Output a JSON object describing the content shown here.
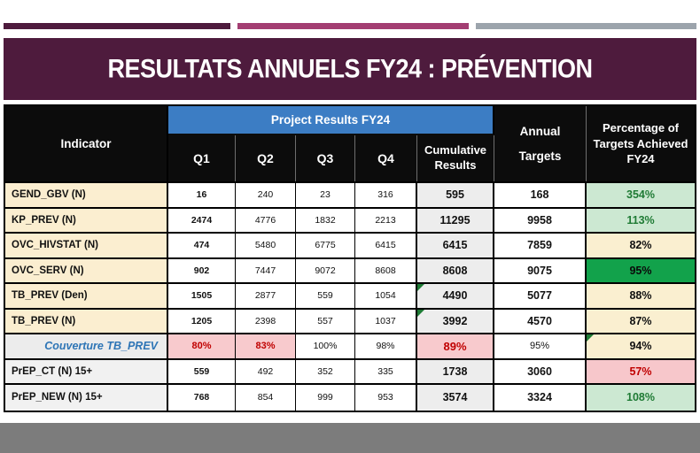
{
  "slide": {
    "title": "RESULTATS ANNUELS FY24 : PRÉVENTION"
  },
  "table": {
    "header": {
      "indicator": "Indicator",
      "group": "Project Results FY24",
      "q1": "Q1",
      "q2": "Q2",
      "q3": "Q3",
      "q4": "Q4",
      "cumulative": "Cumulative Results",
      "annual_line1": "Annual",
      "annual_line2": "Targets",
      "percentage": "Percentage of Targets Achieved FY24"
    },
    "rows": [
      {
        "indicator": "GEND_GBV (N)",
        "q1": "16",
        "q2": "240",
        "q3": "23",
        "q4": "316",
        "cumulative": "595",
        "annual_target": "168",
        "pct_achieved": "354%"
      },
      {
        "indicator": "KP_PREV (N)",
        "q1": "2474",
        "q2": "4776",
        "q3": "1832",
        "q4": "2213",
        "cumulative": "11295",
        "annual_target": "9958",
        "pct_achieved": "113%"
      },
      {
        "indicator": "OVC_HIVSTAT (N)",
        "q1": "474",
        "q2": "5480",
        "q3": "6775",
        "q4": "6415",
        "cumulative": "6415",
        "annual_target": "7859",
        "pct_achieved": "82%"
      },
      {
        "indicator": "OVC_SERV (N)",
        "q1": "902",
        "q2": "7447",
        "q3": "9072",
        "q4": "8608",
        "cumulative": "8608",
        "annual_target": "9075",
        "pct_achieved": "95%"
      },
      {
        "indicator": "TB_PREV (Den)",
        "q1": "1505",
        "q2": "2877",
        "q3": "559",
        "q4": "1054",
        "cumulative": "4490",
        "annual_target": "5077",
        "pct_achieved": "88%"
      },
      {
        "indicator": "TB_PREV (N)",
        "q1": "1205",
        "q2": "2398",
        "q3": "557",
        "q4": "1037",
        "cumulative": "3992",
        "annual_target": "4570",
        "pct_achieved": "87%"
      },
      {
        "indicator": "Couverture TB_PREV",
        "q1": "80%",
        "q2": "83%",
        "q3": "100%",
        "q4": "98%",
        "cumulative": "89%",
        "annual_target": "95%",
        "pct_achieved": "94%"
      },
      {
        "indicator": "PrEP_CT (N) 15+",
        "q1": "559",
        "q2": "492",
        "q3": "352",
        "q4": "335",
        "cumulative": "1738",
        "annual_target": "3060",
        "pct_achieved": "57%"
      },
      {
        "indicator": "PrEP_NEW (N) 15+",
        "q1": "768",
        "q2": "854",
        "q3": "999",
        "q4": "953",
        "cumulative": "3574",
        "annual_target": "3324",
        "pct_achieved": "108%"
      }
    ]
  },
  "colors": {
    "banner_maroon": "#4E1B3D",
    "accent_pink": "#A33E72",
    "accent_gray": "#9CA4AC",
    "header_blue": "#3C7DC4",
    "header_black": "#0C0C0C",
    "indicator_cream": "#FBEED0",
    "cumulative_gray": "#EDEDED",
    "status_good_bg": "#CCE8D2",
    "status_good_text": "#1F7B35",
    "status_neutral_bg": "#FAEFD0",
    "status_achieved_solid_bg": "#12A24B",
    "status_bad_bg": "#F7C7CB",
    "status_bad_text": "#C00000",
    "couverture_label_blue": "#2E75B6",
    "footer_gray": "#7C7C7C"
  }
}
